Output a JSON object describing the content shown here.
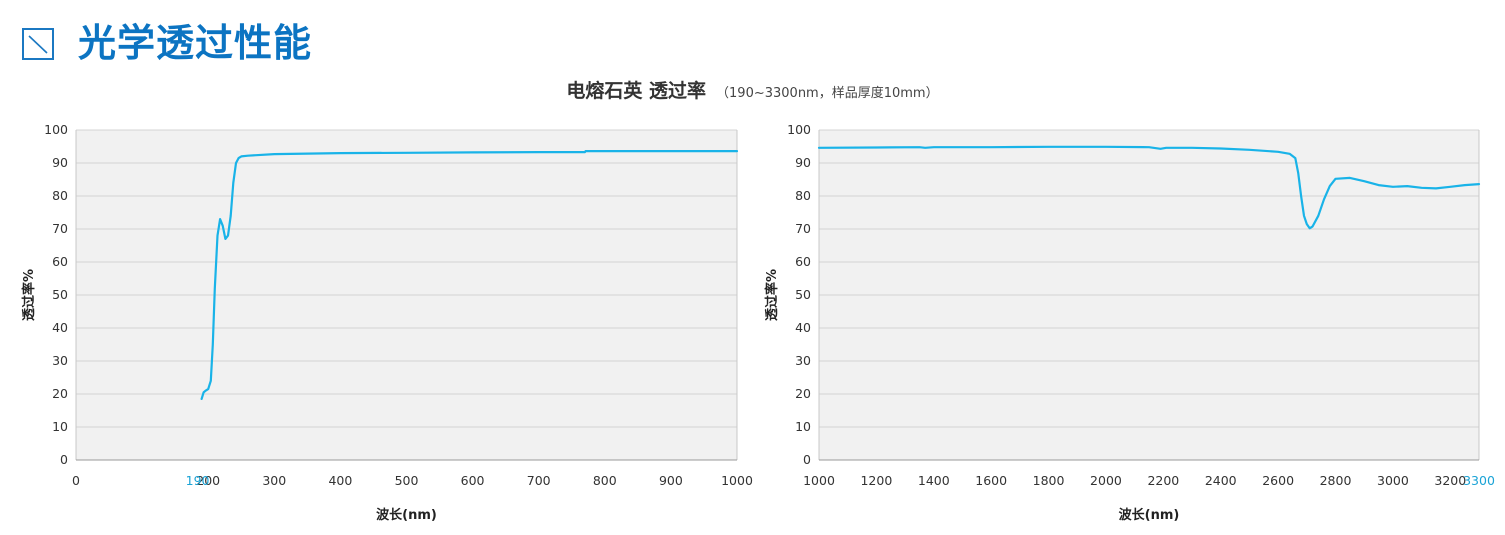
{
  "header": {
    "title": "光学透过性能",
    "icon": "diagonal-line-icon"
  },
  "figure": {
    "title": "电熔石英 透过率",
    "subtitle": "（190~3300nm，样品厚度10mm）"
  },
  "colors": {
    "accent": "#0c74c2",
    "line": "#19b3e8",
    "accent_tick": "#1aa3d6",
    "plot_bg": "#f1f1f1"
  },
  "chart_data": [
    {
      "type": "line",
      "xlabel": "波长(nm)",
      "ylabel": "透过率%",
      "xlim": [
        0,
        1000
      ],
      "ylim": [
        0,
        100
      ],
      "grid": true,
      "xticks": [
        0,
        200,
        300,
        400,
        500,
        600,
        700,
        800,
        900,
        1000
      ],
      "xtick_accent": 190,
      "yticks": [
        0,
        10,
        20,
        30,
        40,
        50,
        60,
        70,
        80,
        90,
        100
      ],
      "series": [
        {
          "x": [
            190,
            193,
            196,
            200,
            204,
            207,
            210,
            214,
            218,
            222,
            226,
            230,
            234,
            238,
            242,
            246,
            250,
            260,
            300,
            400,
            500,
            600,
            700,
            770,
            771,
            800,
            900,
            1000
          ],
          "y": [
            18.5,
            20.5,
            21,
            21.5,
            24,
            35,
            52,
            68,
            73,
            71,
            67,
            68,
            74,
            84,
            90,
            91.5,
            92,
            92.2,
            92.7,
            93,
            93.1,
            93.2,
            93.3,
            93.3,
            93.6,
            93.6,
            93.6,
            93.6
          ]
        }
      ]
    },
    {
      "type": "line",
      "xlabel": "波长(nm)",
      "ylabel": "透过率%",
      "xlim": [
        1000,
        3300
      ],
      "ylim": [
        0,
        100
      ],
      "grid": true,
      "xticks": [
        1000,
        1200,
        1400,
        1600,
        1800,
        2000,
        2200,
        2400,
        2600,
        2800,
        3000,
        3200
      ],
      "xtick_accent": 3300,
      "yticks": [
        0,
        10,
        20,
        30,
        40,
        50,
        60,
        70,
        80,
        90,
        100
      ],
      "series": [
        {
          "x": [
            1000,
            1200,
            1350,
            1370,
            1400,
            1600,
            1800,
            2000,
            2150,
            2190,
            2210,
            2300,
            2400,
            2500,
            2600,
            2640,
            2660,
            2670,
            2680,
            2690,
            2700,
            2710,
            2720,
            2740,
            2760,
            2780,
            2800,
            2850,
            2900,
            2950,
            3000,
            3050,
            3100,
            3150,
            3200,
            3250,
            3300
          ],
          "y": [
            94.6,
            94.7,
            94.8,
            94.6,
            94.8,
            94.8,
            94.9,
            94.9,
            94.8,
            94.3,
            94.6,
            94.6,
            94.4,
            94.0,
            93.4,
            92.8,
            91.5,
            87,
            80,
            74,
            71.5,
            70.2,
            70.8,
            74,
            79,
            83,
            85.2,
            85.5,
            84.5,
            83.3,
            82.8,
            83.0,
            82.5,
            82.3,
            82.8,
            83.3,
            83.6
          ]
        }
      ]
    }
  ]
}
